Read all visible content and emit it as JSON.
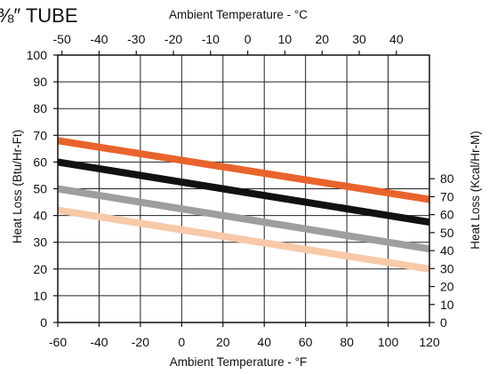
{
  "chart_data": {
    "type": "line",
    "title": "⅜″ TUBE",
    "xlabel_bottom": "Ambient Temperature - °F",
    "xlabel_top": "Ambient Temperature - °C",
    "ylabel_left": "Heat Loss (Btu/Hr-Ft)",
    "ylabel_right": "Heat Loss (Kcal/Hr-M)",
    "xlim": [
      -60,
      120
    ],
    "ylim": [
      0,
      100
    ],
    "x_ticks": [
      -60,
      -40,
      -20,
      0,
      20,
      40,
      60,
      80,
      100,
      120
    ],
    "y_ticks": [
      0,
      10,
      20,
      30,
      40,
      50,
      60,
      70,
      80,
      90,
      100
    ],
    "top_ticks": [
      -50,
      -40,
      -30,
      -20,
      -10,
      0,
      10,
      20,
      30,
      40
    ],
    "right_ticks": [
      0,
      10,
      20,
      30,
      40,
      50,
      60,
      70,
      80
    ],
    "grid": true,
    "series": [
      {
        "color": "#E8642C",
        "x": [
          -60,
          120
        ],
        "y": [
          68,
          46
        ]
      },
      {
        "color": "#111111",
        "x": [
          -60,
          120
        ],
        "y": [
          60,
          37.5
        ]
      },
      {
        "color": "#9E9E9E",
        "x": [
          -60,
          120
        ],
        "y": [
          50,
          27.5
        ]
      },
      {
        "color": "#F8C9A8",
        "x": [
          -60,
          120
        ],
        "y": [
          42,
          20
        ]
      }
    ]
  }
}
